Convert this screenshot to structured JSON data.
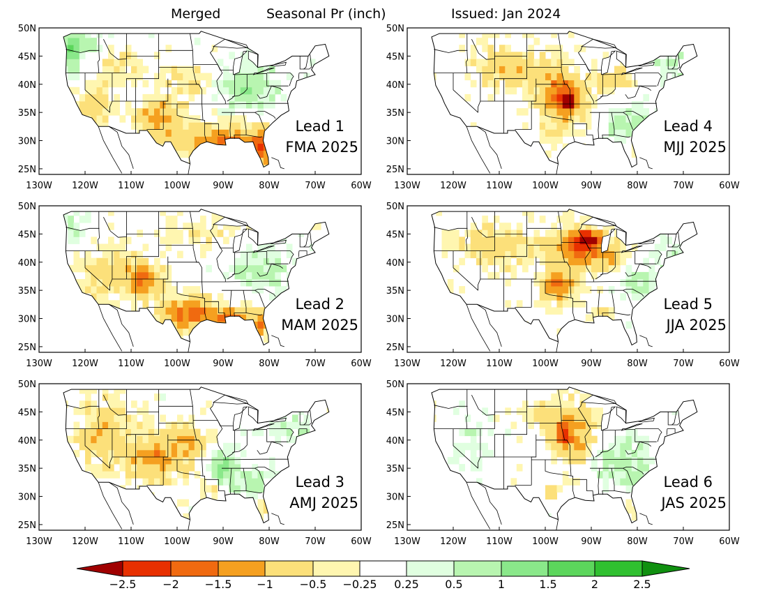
{
  "title": {
    "product": "Merged",
    "variable": "Seasonal Pr (inch)",
    "issued": "Issued: Jan 2024"
  },
  "lat_labels": [
    "50N",
    "45N",
    "40N",
    "35N",
    "30N",
    "25N"
  ],
  "lon_labels": [
    "130W",
    "120W",
    "110W",
    "100W",
    "90W",
    "80W",
    "70W",
    "60W"
  ],
  "panels": [
    {
      "lead": "Lead 1",
      "season": "FMA 2025",
      "pattern": "south-dry"
    },
    {
      "lead": "Lead 4",
      "season": "MJJ 2025",
      "pattern": "central-dry"
    },
    {
      "lead": "Lead 2",
      "season": "MAM 2025",
      "pattern": "southwest-dry"
    },
    {
      "lead": "Lead 5",
      "season": "JJA 2025",
      "pattern": "midwest-dry"
    },
    {
      "lead": "Lead 3",
      "season": "AMJ 2025",
      "pattern": "west-dry"
    },
    {
      "lead": "Lead 6",
      "season": "JAS 2025",
      "pattern": "plains-dry"
    }
  ],
  "colorbar": {
    "labels": [
      "−2.5",
      "−2",
      "−1.5",
      "−1",
      "−0.5",
      "−0.25",
      "0.25",
      "0.5",
      "1",
      "1.5",
      "2",
      "2.5"
    ],
    "colors": [
      "#a00000",
      "#e83000",
      "#f06a10",
      "#f5a020",
      "#fce07a",
      "#fff6b0",
      "#ffffff",
      "#e0ffe0",
      "#b8f5b0",
      "#8ae88a",
      "#5cd65c",
      "#30c030",
      "#109010"
    ]
  }
}
